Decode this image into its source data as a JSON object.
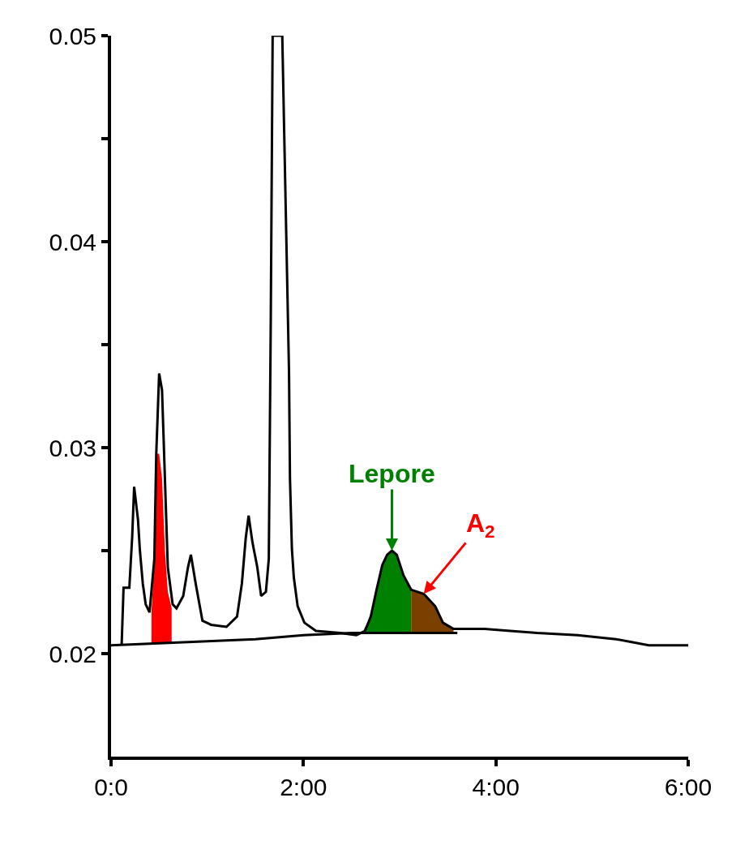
{
  "chart_data": {
    "type": "line",
    "xlim": [
      0,
      6
    ],
    "ylim": [
      0.015,
      0.05
    ],
    "xticks": [
      {
        "value": 0,
        "label": "0:0"
      },
      {
        "value": 2,
        "label": "2:00"
      },
      {
        "value": 4,
        "label": "4:00"
      },
      {
        "value": 6,
        "label": "6:00"
      }
    ],
    "yticks": [
      0.02,
      {
        "value": 0.025,
        "label": null
      },
      0.03,
      {
        "value": 0.035,
        "label": null
      },
      0.04,
      {
        "value": 0.045,
        "label": null
      },
      0.05
    ],
    "marker": "none",
    "line_style": "solid",
    "series": [
      {
        "type": "area",
        "color": "#ff0000",
        "x": [
          0.42,
          0.45,
          0.47,
          0.5,
          0.53,
          0.56,
          0.59,
          0.63
        ],
        "values": [
          0.022,
          0.0246,
          0.0297,
          0.0297,
          0.0285,
          0.025,
          0.023,
          0.0222
        ]
      },
      {
        "type": "area",
        "color": "#008000",
        "x": [
          2.61,
          2.7,
          2.76,
          2.82,
          2.87,
          2.92,
          2.97,
          3.04,
          3.12
        ],
        "values": [
          0.021,
          0.0218,
          0.0231,
          0.0243,
          0.0248,
          0.025,
          0.0248,
          0.0238,
          0.0231
        ]
      },
      {
        "type": "area",
        "color": "#7b3f00",
        "x": [
          3.12,
          3.25,
          3.37,
          3.45,
          3.56
        ],
        "values": [
          0.0231,
          0.0229,
          0.0223,
          0.0215,
          0.0212
        ]
      },
      {
        "color": "#000000",
        "x": [
          0,
          0.5,
          1.0,
          1.5,
          2.0,
          2.5,
          3.0,
          3.6
        ],
        "values": [
          0.0204,
          0.0205,
          0.0206,
          0.0207,
          0.0209,
          0.021,
          0.021,
          0.021
        ]
      },
      {
        "color": "#000000",
        "x": [
          0.11,
          0.13,
          0.19,
          0.22,
          0.24,
          0.28,
          0.3,
          0.33,
          0.36,
          0.4,
          0.45,
          0.47,
          0.5,
          0.53,
          0.56,
          0.59,
          0.64,
          0.68,
          0.75,
          0.8,
          0.83,
          0.88,
          0.95,
          1.04,
          1.2,
          1.31,
          1.36,
          1.4,
          1.43,
          1.47,
          1.52,
          1.56,
          1.61,
          1.64,
          1.66,
          1.68,
          1.78,
          1.8,
          1.85,
          1.86,
          1.88,
          1.9,
          1.94,
          2.01,
          2.13,
          2.38,
          2.55,
          2.64,
          2.7,
          2.76,
          2.82,
          2.87,
          2.92,
          2.97,
          3.04,
          3.12,
          3.25,
          3.37,
          3.45,
          3.56,
          3.88,
          4.15,
          4.43,
          4.85,
          5.25,
          5.59,
          6.0
        ],
        "values": [
          0.0204,
          0.0232,
          0.0232,
          0.0257,
          0.0281,
          0.0265,
          0.025,
          0.0234,
          0.0224,
          0.022,
          0.0246,
          0.0297,
          0.0336,
          0.0328,
          0.0285,
          0.0242,
          0.0224,
          0.0222,
          0.0228,
          0.0242,
          0.0248,
          0.0234,
          0.0216,
          0.0214,
          0.0213,
          0.0218,
          0.0234,
          0.0256,
          0.0267,
          0.0254,
          0.0242,
          0.0228,
          0.023,
          0.0246,
          0.036,
          0.05,
          0.05,
          0.0453,
          0.0337,
          0.0285,
          0.0251,
          0.0237,
          0.0223,
          0.0215,
          0.0211,
          0.021,
          0.0209,
          0.0211,
          0.0218,
          0.0231,
          0.0243,
          0.0248,
          0.025,
          0.0248,
          0.0238,
          0.0231,
          0.0229,
          0.0223,
          0.0215,
          0.0212,
          0.0212,
          0.0211,
          0.021,
          0.0209,
          0.0207,
          0.0204,
          0.0204
        ]
      }
    ],
    "annotations": [
      {
        "text": "Lepore",
        "x": 2.92,
        "y": 0.025
      },
      {
        "text": "A$_{2}$",
        "x": 3.25,
        "y": 0.0229
      }
    ]
  }
}
